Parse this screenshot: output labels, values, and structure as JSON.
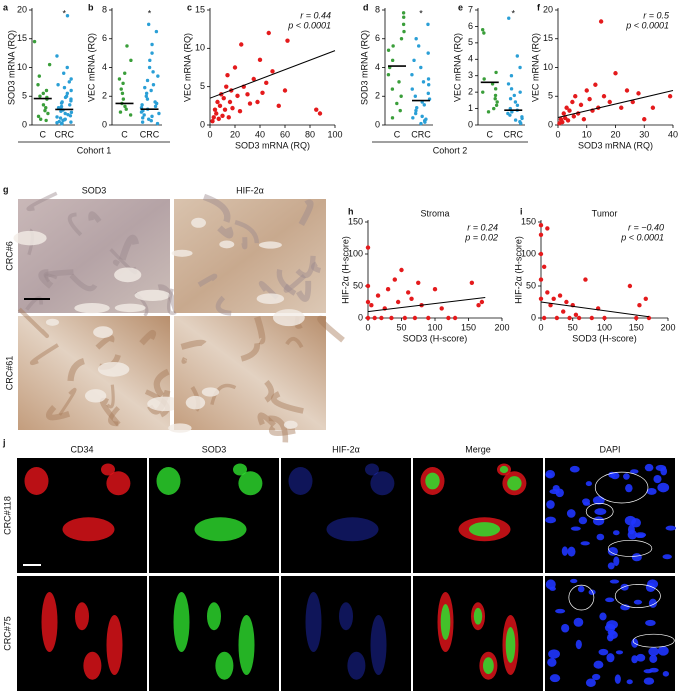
{
  "chart_data": [
    {
      "panel": "a",
      "type": "strip",
      "ylabel": "SOD3 mRNA (RQ)",
      "categories": [
        "C",
        "CRC"
      ],
      "colors": [
        "#3a9e3a",
        "#2a9fd6"
      ],
      "values": [
        [
          14.5,
          10.5,
          8.5,
          7,
          6,
          5.5,
          5,
          4.8,
          4.5,
          3.5,
          3,
          2.5,
          2,
          1.5,
          1,
          0.8
        ],
        [
          19,
          12,
          10,
          9,
          8,
          7.5,
          7,
          6.5,
          6,
          5.5,
          5,
          4.8,
          4.5,
          4.2,
          4,
          3.8,
          3.5,
          3.2,
          3,
          2.8,
          2.6,
          2.4,
          2.2,
          2,
          1.8,
          1.6,
          1.4,
          1.2,
          1,
          0.9,
          0.8,
          0.6,
          0.5,
          0.4,
          0.3,
          0.2
        ]
      ],
      "medians": [
        4.6,
        2.7
      ],
      "annotation": "*",
      "ylim": [
        0,
        20
      ],
      "yticks": [
        0,
        5,
        10,
        15,
        20
      ]
    },
    {
      "panel": "b",
      "type": "strip",
      "ylabel": "VEC mRNA (RQ)",
      "categories": [
        "C",
        "CRC"
      ],
      "colors": [
        "#3a9e3a",
        "#2a9fd6"
      ],
      "values": [
        [
          5.5,
          4.5,
          3.6,
          3.2,
          2.9,
          2.5,
          2.2,
          1.8,
          1.5,
          1.3,
          1.1,
          0.9,
          0.7
        ],
        [
          7,
          6.5,
          5.6,
          5,
          4.5,
          4,
          3.7,
          3.4,
          3.1,
          2.8,
          2.6,
          2.4,
          2.2,
          2,
          1.8,
          1.6,
          1.5,
          1.4,
          1.3,
          1.2,
          1.1,
          1,
          0.9,
          0.8,
          0.7,
          0.6,
          0.5,
          0.4,
          0.3,
          0.2,
          0.1
        ]
      ],
      "medians": [
        1.5,
        1.1
      ],
      "annotation": "*",
      "ylim": [
        0,
        8
      ],
      "yticks": [
        0,
        2,
        4,
        6,
        8
      ]
    },
    {
      "panel": "c",
      "type": "scatter",
      "xlabel": "SOD3 mRNA (RQ)",
      "ylabel": "VEC mRNA (RQ)",
      "annotations": [
        "r = 0.44",
        "p < 0.0001"
      ],
      "color": "#e41a1c",
      "x": [
        2,
        3,
        4,
        5,
        6,
        7,
        8,
        9,
        10,
        11,
        12,
        13,
        14,
        15,
        16,
        17,
        18,
        20,
        22,
        24,
        25,
        27,
        30,
        32,
        35,
        38,
        40,
        42,
        45,
        47,
        50,
        55,
        60,
        62,
        85,
        88
      ],
      "y": [
        0.5,
        1,
        2,
        1.5,
        3,
        0.8,
        2.5,
        4,
        1.2,
        3.5,
        2,
        5,
        6.5,
        1,
        3,
        4.5,
        2.2,
        7.5,
        3.8,
        1.8,
        10.5,
        5,
        4,
        2.8,
        6,
        3,
        8.5,
        4.2,
        5.5,
        12,
        7,
        2.5,
        4.5,
        11,
        2,
        1.5
      ],
      "fit": {
        "x": [
          0,
          100
        ],
        "y": [
          3.5,
          9.7
        ]
      },
      "xlim": [
        0,
        100
      ],
      "xticks": [
        0,
        20,
        40,
        60,
        80,
        100
      ],
      "ylim": [
        0,
        15
      ],
      "yticks": [
        0,
        5,
        10,
        15
      ]
    },
    {
      "panel": "d",
      "type": "strip",
      "ylabel": "SOD3 mRNA (RQ)",
      "categories": [
        "C",
        "CRC"
      ],
      "colors": [
        "#3a9e3a",
        "#2a9fd6"
      ],
      "values": [
        [
          7.8,
          7.5,
          7,
          6.5,
          6,
          5.5,
          5.2,
          4.5,
          4,
          3.5,
          3,
          2.5,
          2,
          1.5,
          1,
          0.5
        ],
        [
          7,
          6,
          5.5,
          5,
          4.5,
          4,
          3.5,
          3.2,
          3,
          2.8,
          2.5,
          2.2,
          2,
          1.8,
          1.6,
          1.4,
          1.2,
          1,
          0.8,
          0.6,
          0.5,
          0.4,
          0.3,
          0.2,
          0.1
        ]
      ],
      "medians": [
        4.1,
        1.7
      ],
      "annotation": "*",
      "ylim": [
        0,
        8
      ],
      "yticks": [
        0,
        2,
        4,
        6,
        8
      ]
    },
    {
      "panel": "e",
      "type": "strip",
      "ylabel": "VEC mRNA (RQ)",
      "categories": [
        "C",
        "CRC"
      ],
      "colors": [
        "#3a9e3a",
        "#2a9fd6"
      ],
      "values": [
        [
          5.8,
          5.6,
          3.2,
          2.8,
          2.5,
          2.2,
          2,
          1.8,
          1.6,
          1.4,
          1.2,
          1,
          0.8
        ],
        [
          6.5,
          4.2,
          3.5,
          3,
          2.5,
          2.2,
          2,
          1.8,
          1.6,
          1.4,
          1.2,
          1,
          0.9,
          0.8,
          0.7,
          0.6,
          0.5,
          0.4,
          0.3,
          0.2,
          0.1
        ]
      ],
      "medians": [
        2.6,
        0.9
      ],
      "annotation": "*",
      "ylim": [
        0,
        7
      ],
      "yticks": [
        0,
        1,
        2,
        3,
        4,
        5,
        6,
        7
      ]
    },
    {
      "panel": "f",
      "type": "scatter",
      "xlabel": "SOD3 mRNA (RQ)",
      "ylabel": "VEC mRNA (RQ)",
      "annotations": [
        "r = 0.5",
        "p < 0.0001"
      ],
      "color": "#e41a1c",
      "x": [
        0.5,
        1,
        1.5,
        2,
        2.5,
        3,
        3.5,
        4,
        5,
        5.5,
        6,
        7,
        8,
        9,
        10,
        11,
        12,
        13,
        14,
        15,
        16,
        18,
        20,
        22,
        24,
        26,
        28,
        30,
        33,
        39
      ],
      "y": [
        0.3,
        1,
        0.5,
        2,
        1.2,
        3,
        0.8,
        2.5,
        4,
        1.5,
        5,
        2,
        3.5,
        1,
        6,
        4.5,
        2.5,
        7,
        3,
        18,
        5,
        4,
        9,
        3,
        6,
        4,
        5.5,
        1,
        3,
        5
      ],
      "fit": {
        "x": [
          0,
          40
        ],
        "y": [
          1.3,
          6
        ]
      },
      "xlim": [
        0,
        40
      ],
      "xticks": [
        0,
        10,
        20,
        30,
        40
      ],
      "ylim": [
        0,
        20
      ],
      "yticks": [
        0,
        5,
        10,
        15,
        20
      ]
    },
    {
      "panel": "h",
      "type": "scatter",
      "title": "Stroma",
      "xlabel": "SOD3 (H-score)",
      "ylabel": "HIF-2α (H-score)",
      "annotations": [
        "r = 0.24",
        "p = 0.02"
      ],
      "color": "#e41a1c",
      "x": [
        0,
        0,
        0,
        0,
        5,
        10,
        15,
        20,
        25,
        30,
        35,
        40,
        45,
        50,
        55,
        60,
        65,
        70,
        75,
        80,
        90,
        100,
        110,
        120,
        130,
        155,
        165,
        170
      ],
      "y": [
        110,
        50,
        25,
        0,
        20,
        0,
        35,
        0,
        15,
        45,
        0,
        60,
        25,
        75,
        0,
        40,
        30,
        0,
        55,
        20,
        0,
        45,
        15,
        0,
        0,
        55,
        20,
        25
      ],
      "fit": {
        "x": [
          0,
          175
        ],
        "y": [
          10,
          32
        ]
      },
      "xlim": [
        0,
        200
      ],
      "xticks": [
        0,
        50,
        100,
        150,
        200
      ],
      "ylim": [
        0,
        150
      ],
      "yticks": [
        0,
        50,
        100,
        150
      ]
    },
    {
      "panel": "i",
      "type": "scatter",
      "title": "Tumor",
      "xlabel": "SOD3 (H-score)",
      "ylabel": "HIF-2α (H-score)",
      "annotations": [
        "r = −0.40",
        "p < 0.0001"
      ],
      "color": "#e41a1c",
      "x": [
        0,
        0,
        0,
        0,
        0,
        5,
        5,
        10,
        10,
        15,
        20,
        25,
        30,
        35,
        40,
        45,
        50,
        55,
        60,
        70,
        80,
        90,
        100,
        140,
        150,
        155,
        165,
        170
      ],
      "y": [
        145,
        130,
        100,
        60,
        30,
        0,
        80,
        40,
        140,
        20,
        30,
        0,
        35,
        10,
        25,
        0,
        20,
        5,
        0,
        60,
        0,
        15,
        0,
        50,
        0,
        20,
        30,
        0
      ],
      "fit": {
        "x": [
          0,
          170
        ],
        "y": [
          25,
          2
        ]
      },
      "xlim": [
        0,
        200
      ],
      "xticks": [
        0,
        50,
        100,
        150,
        200
      ],
      "ylim": [
        0,
        150
      ],
      "yticks": [
        0,
        50,
        100,
        150
      ]
    }
  ],
  "cohorts": [
    "Cohort 1",
    "Cohort 2"
  ],
  "images": [
    {
      "panel": "g",
      "columns": [
        "SOD3",
        "HIF-2α"
      ],
      "rows": [
        "CRC#6",
        "CRC#61"
      ]
    },
    {
      "panel": "j",
      "columns": [
        "CD34",
        "SOD3",
        "HIF-2α",
        "Merge",
        "DAPI"
      ],
      "rows": [
        "CRC#118",
        "CRC#75"
      ]
    }
  ]
}
